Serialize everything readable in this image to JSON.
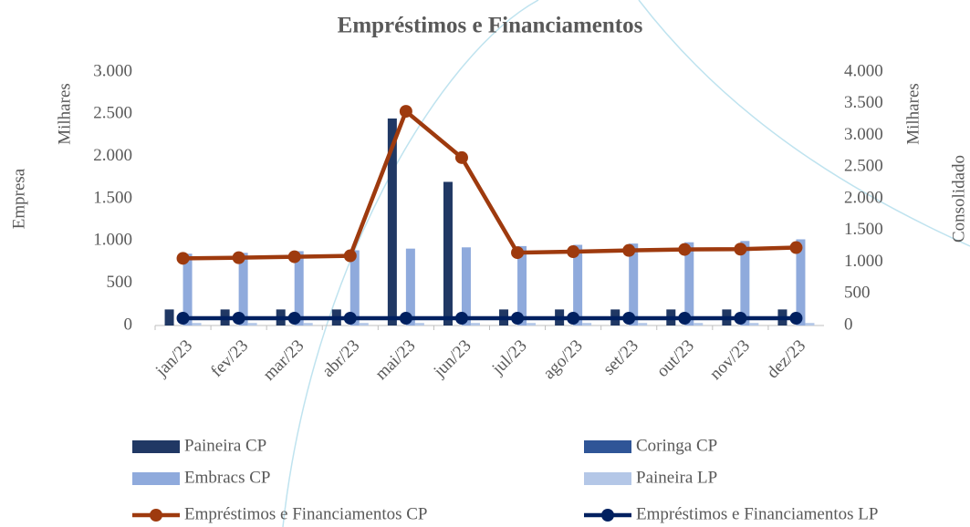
{
  "chart_data": {
    "type": "bar",
    "title": "Empréstimos e Financiamentos",
    "y_label": "Empresa",
    "y_unit": "Milhares",
    "y2_label": "Consolidado",
    "y2_unit": "Milhares",
    "categories": [
      "jan/23",
      "fev/23",
      "mar/23",
      "abr/23",
      "mai/23",
      "jun/23",
      "jul/23",
      "ago/23",
      "set/23",
      "out/23",
      "nov/23",
      "dez/23"
    ],
    "series": [
      {
        "name": "Paineira CP",
        "type": "bar",
        "color": "#203864",
        "values": [
          190,
          190,
          190,
          190,
          2450,
          1700,
          190,
          190,
          190,
          190,
          190,
          190
        ]
      },
      {
        "name": "Coringa CP",
        "type": "bar",
        "color": "#2f5597",
        "values": [
          0,
          0,
          0,
          0,
          0,
          0,
          0,
          0,
          0,
          0,
          0,
          0
        ]
      },
      {
        "name": "Embracs CP",
        "type": "bar",
        "color": "#8faadc",
        "values": [
          850,
          860,
          880,
          890,
          910,
          925,
          940,
          955,
          970,
          985,
          1000,
          1020
        ]
      },
      {
        "name": "Paineira LP",
        "type": "bar",
        "color": "#b4c7e7",
        "values": [
          30,
          30,
          30,
          30,
          30,
          30,
          30,
          30,
          30,
          30,
          30,
          30
        ]
      },
      {
        "name": "Empréstimos e Financiamentos CP",
        "type": "line",
        "axis": "y2",
        "color": "#9e3a0e",
        "values": [
          1060,
          1070,
          1085,
          1100,
          3380,
          2650,
          1150,
          1165,
          1185,
          1200,
          1205,
          1230
        ]
      },
      {
        "name": "Empréstimos e Financiamentos LP",
        "type": "line",
        "axis": "y2",
        "color": "#002060",
        "values": [
          115,
          115,
          115,
          115,
          115,
          115,
          115,
          115,
          115,
          115,
          115,
          115
        ]
      }
    ],
    "ylim": [
      0,
      3000
    ],
    "yticks": [
      {
        "value": 0,
        "label": "0"
      },
      {
        "value": 500,
        "label": "500"
      },
      {
        "value": 1000,
        "label": "1.000"
      },
      {
        "value": 1500,
        "label": "1.500"
      },
      {
        "value": 2000,
        "label": "2.000"
      },
      {
        "value": 2500,
        "label": "2.500"
      },
      {
        "value": 3000,
        "label": "3.000"
      }
    ],
    "y2lim": [
      0,
      4000
    ],
    "y2ticks": [
      {
        "value": 0,
        "label": "0"
      },
      {
        "value": 500,
        "label": "500"
      },
      {
        "value": 1000,
        "label": "1.000"
      },
      {
        "value": 1500,
        "label": "1.500"
      },
      {
        "value": 2000,
        "label": "2.000"
      },
      {
        "value": 2500,
        "label": "2.500"
      },
      {
        "value": 3000,
        "label": "3.000"
      },
      {
        "value": 3500,
        "label": "3.500"
      },
      {
        "value": 4000,
        "label": "4.000"
      }
    ],
    "grid": false
  }
}
